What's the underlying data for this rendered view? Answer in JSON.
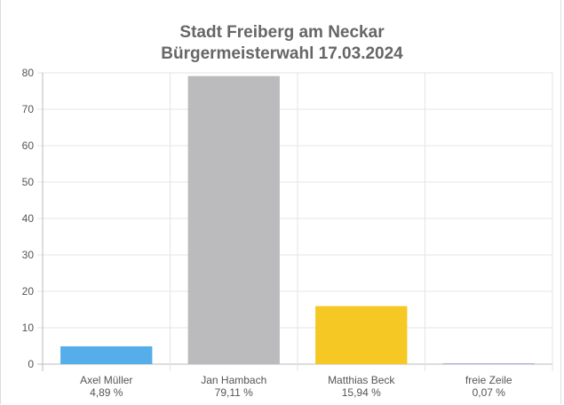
{
  "chart_data": {
    "type": "bar",
    "title": "Stadt Freiberg am Neckar",
    "subtitle": "Bürgermeisterwahl 17.03.2024",
    "categories": [
      "Axel Müller",
      "Jan Hambach",
      "Matthias Beck",
      "freie Zeile"
    ],
    "percent_labels": [
      "4,89 %",
      "79,11 %",
      "15,94 %",
      "0,07 %"
    ],
    "values": [
      4.89,
      79.11,
      15.94,
      0.07
    ],
    "colors": [
      "#55ade9",
      "#bbbbbd",
      "#f5c823",
      "#b9a6d6"
    ],
    "yticks": [
      "0",
      "10",
      "20",
      "30",
      "40",
      "50",
      "60",
      "70",
      "80"
    ],
    "ylim": [
      0,
      80
    ],
    "grid": true,
    "xlabel": "",
    "ylabel": ""
  }
}
